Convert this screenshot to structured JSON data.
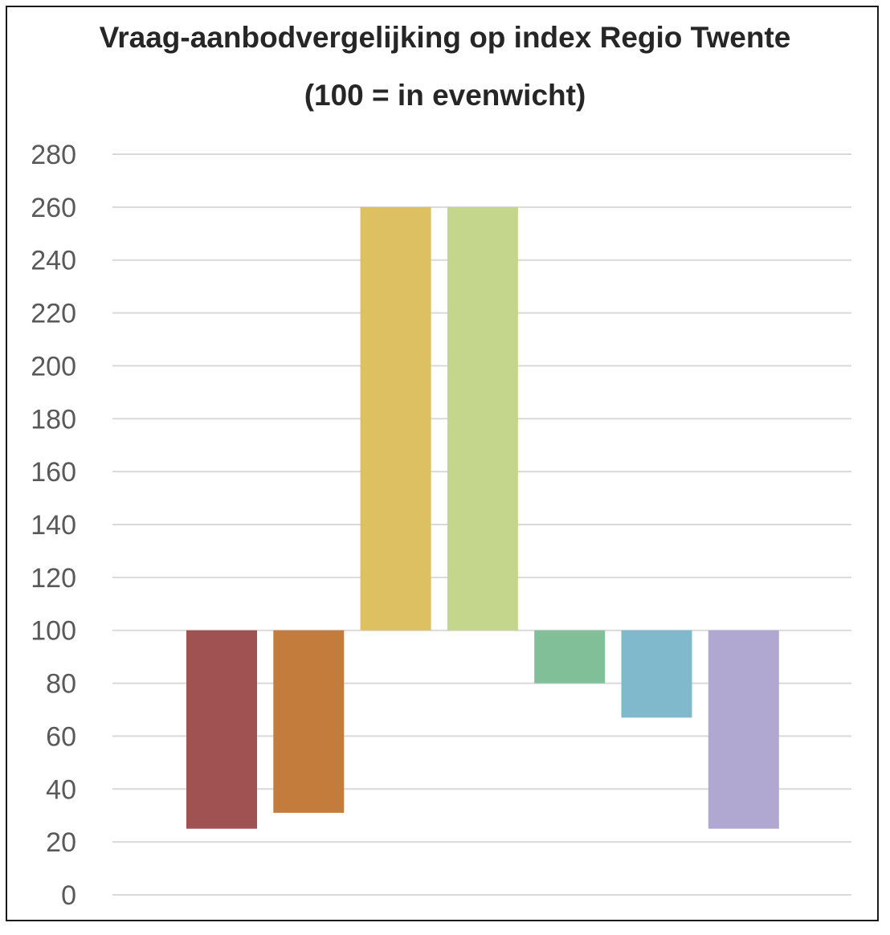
{
  "chart_data": {
    "type": "bar",
    "title": "Vraag-aanbodvergelijking op index Regio Twente",
    "subtitle": "(100 = in evenwicht)",
    "baseline": 100,
    "ylim": [
      0,
      280
    ],
    "yticks": [
      0,
      20,
      40,
      60,
      80,
      100,
      120,
      140,
      160,
      180,
      200,
      220,
      240,
      260,
      280
    ],
    "grid": true,
    "legend": "none",
    "bars": [
      {
        "value": 25,
        "color": "#a05252"
      },
      {
        "value": 31,
        "color": "#c47c3c"
      },
      {
        "value": 260,
        "color": "#dcc062"
      },
      {
        "value": 260,
        "color": "#c4d68c"
      },
      {
        "value": 80,
        "color": "#80bf98"
      },
      {
        "value": 67,
        "color": "#80b8cc"
      },
      {
        "value": 25,
        "color": "#b0a8d0"
      }
    ]
  }
}
